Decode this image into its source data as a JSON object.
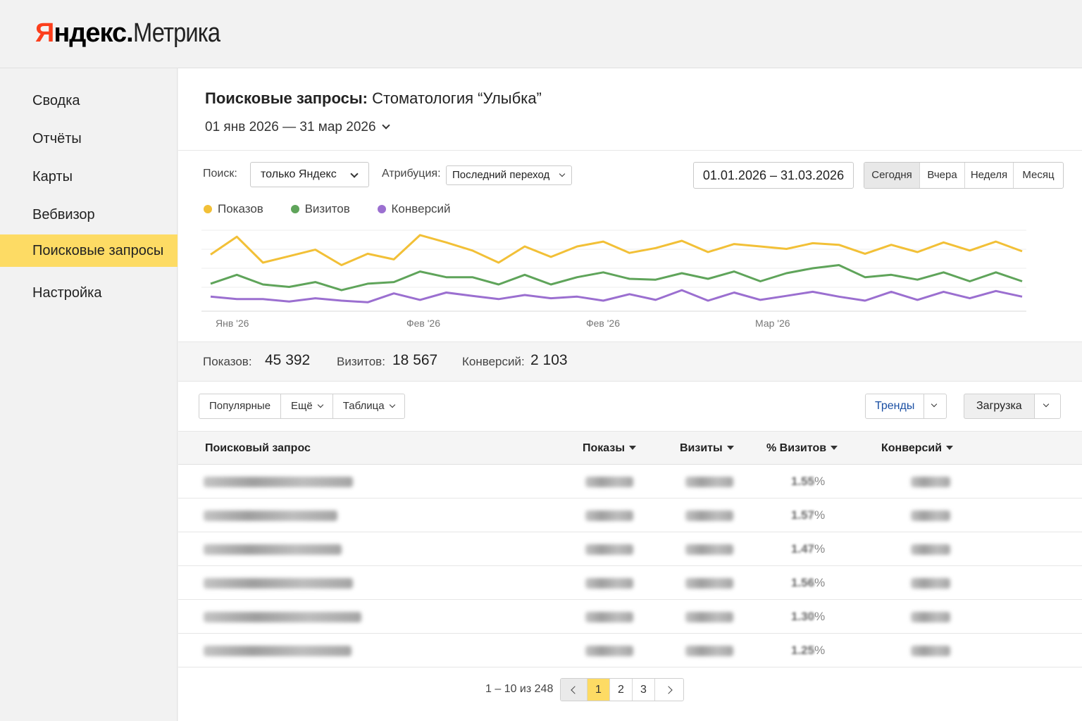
{
  "app": {
    "logo_brand": "Яндекс",
    "logo_product": "Метрика"
  },
  "sidebar": {
    "items": [
      {
        "label": "Сводка"
      },
      {
        "label": "Отчёты"
      },
      {
        "label": "Карты"
      },
      {
        "label": "Вебвизор"
      },
      {
        "label": "Поисковые запросы",
        "active": true
      },
      {
        "label": "Настройка"
      }
    ]
  },
  "header": {
    "title_bold": "Поисковые запросы:",
    "title_rest": "Стоматология “Улыбка”",
    "period": "01 янв 2026 — 31 мар 2026"
  },
  "filters": {
    "search_label": "Поиск:",
    "search_value": "только Яндекс",
    "attribution_label": "Атрибуция:",
    "attribution_value": "Последний переход",
    "date_range": "01.01.2026 – 31.03.2026",
    "quick_periods": [
      "Сегодня",
      "Вчера",
      "Неделя",
      "Месяц"
    ],
    "quick_active": "Сегодня"
  },
  "legend": [
    {
      "label": "Показов",
      "color": "#f2c037"
    },
    {
      "label": "Визитов",
      "color": "#5fa45a"
    },
    {
      "label": "Конверсий",
      "color": "#9b6fd0"
    }
  ],
  "chart_data": {
    "type": "line",
    "x_tick_labels": [
      "Янв '26",
      "Фев '26",
      "Фев '26",
      "Мар '26"
    ],
    "series": [
      {
        "name": "Показов",
        "color": "#f2c037",
        "values": [
          70,
          92,
          60,
          68,
          76,
          57,
          71,
          64,
          94,
          85,
          75,
          60,
          80,
          67,
          80,
          86,
          72,
          78,
          87,
          73,
          83,
          80,
          77,
          84,
          82,
          71,
          82,
          73,
          85,
          75,
          86,
          74
        ]
      },
      {
        "name": "Визитов",
        "color": "#5fa45a",
        "values": [
          34,
          45,
          33,
          30,
          36,
          26,
          34,
          36,
          49,
          42,
          42,
          33,
          45,
          33,
          42,
          48,
          40,
          39,
          47,
          40,
          49,
          37,
          47,
          53,
          57,
          42,
          45,
          39,
          48,
          37,
          48,
          37
        ]
      },
      {
        "name": "Конверсий",
        "color": "#9b6fd0",
        "values": [
          18,
          15,
          15,
          12,
          16,
          13,
          11,
          22,
          14,
          23,
          19,
          15,
          20,
          16,
          18,
          13,
          21,
          14,
          26,
          13,
          23,
          14,
          19,
          24,
          18,
          13,
          24,
          14,
          24,
          16,
          25,
          18
        ]
      }
    ]
  },
  "totals": {
    "impressions_label": "Показов:",
    "impressions_value": "45 392",
    "visits_label": "Визитов:",
    "visits_value": "18 567",
    "conversions_label": "Конверсий:",
    "conversions_value": "2 103"
  },
  "toolbar": {
    "popular": "Популярные",
    "more": "Ещё",
    "view": "Таблица",
    "trends": "Тренды",
    "download": "Загрузка"
  },
  "table": {
    "columns": [
      "Поисковый запрос",
      "Показы",
      "Визиты",
      "% Визитов",
      "Конверсий"
    ],
    "rows": [
      {
        "visits_pct": "1.55"
      },
      {
        "visits_pct": "1.57"
      },
      {
        "visits_pct": "1.47"
      },
      {
        "visits_pct": "1.56"
      },
      {
        "visits_pct": "1.30"
      },
      {
        "visits_pct": "1.25"
      }
    ],
    "pct_suffix": "%"
  },
  "pager": {
    "info": "1 – 10 из 248",
    "pages": [
      "1",
      "2",
      "3"
    ],
    "current": "1"
  }
}
